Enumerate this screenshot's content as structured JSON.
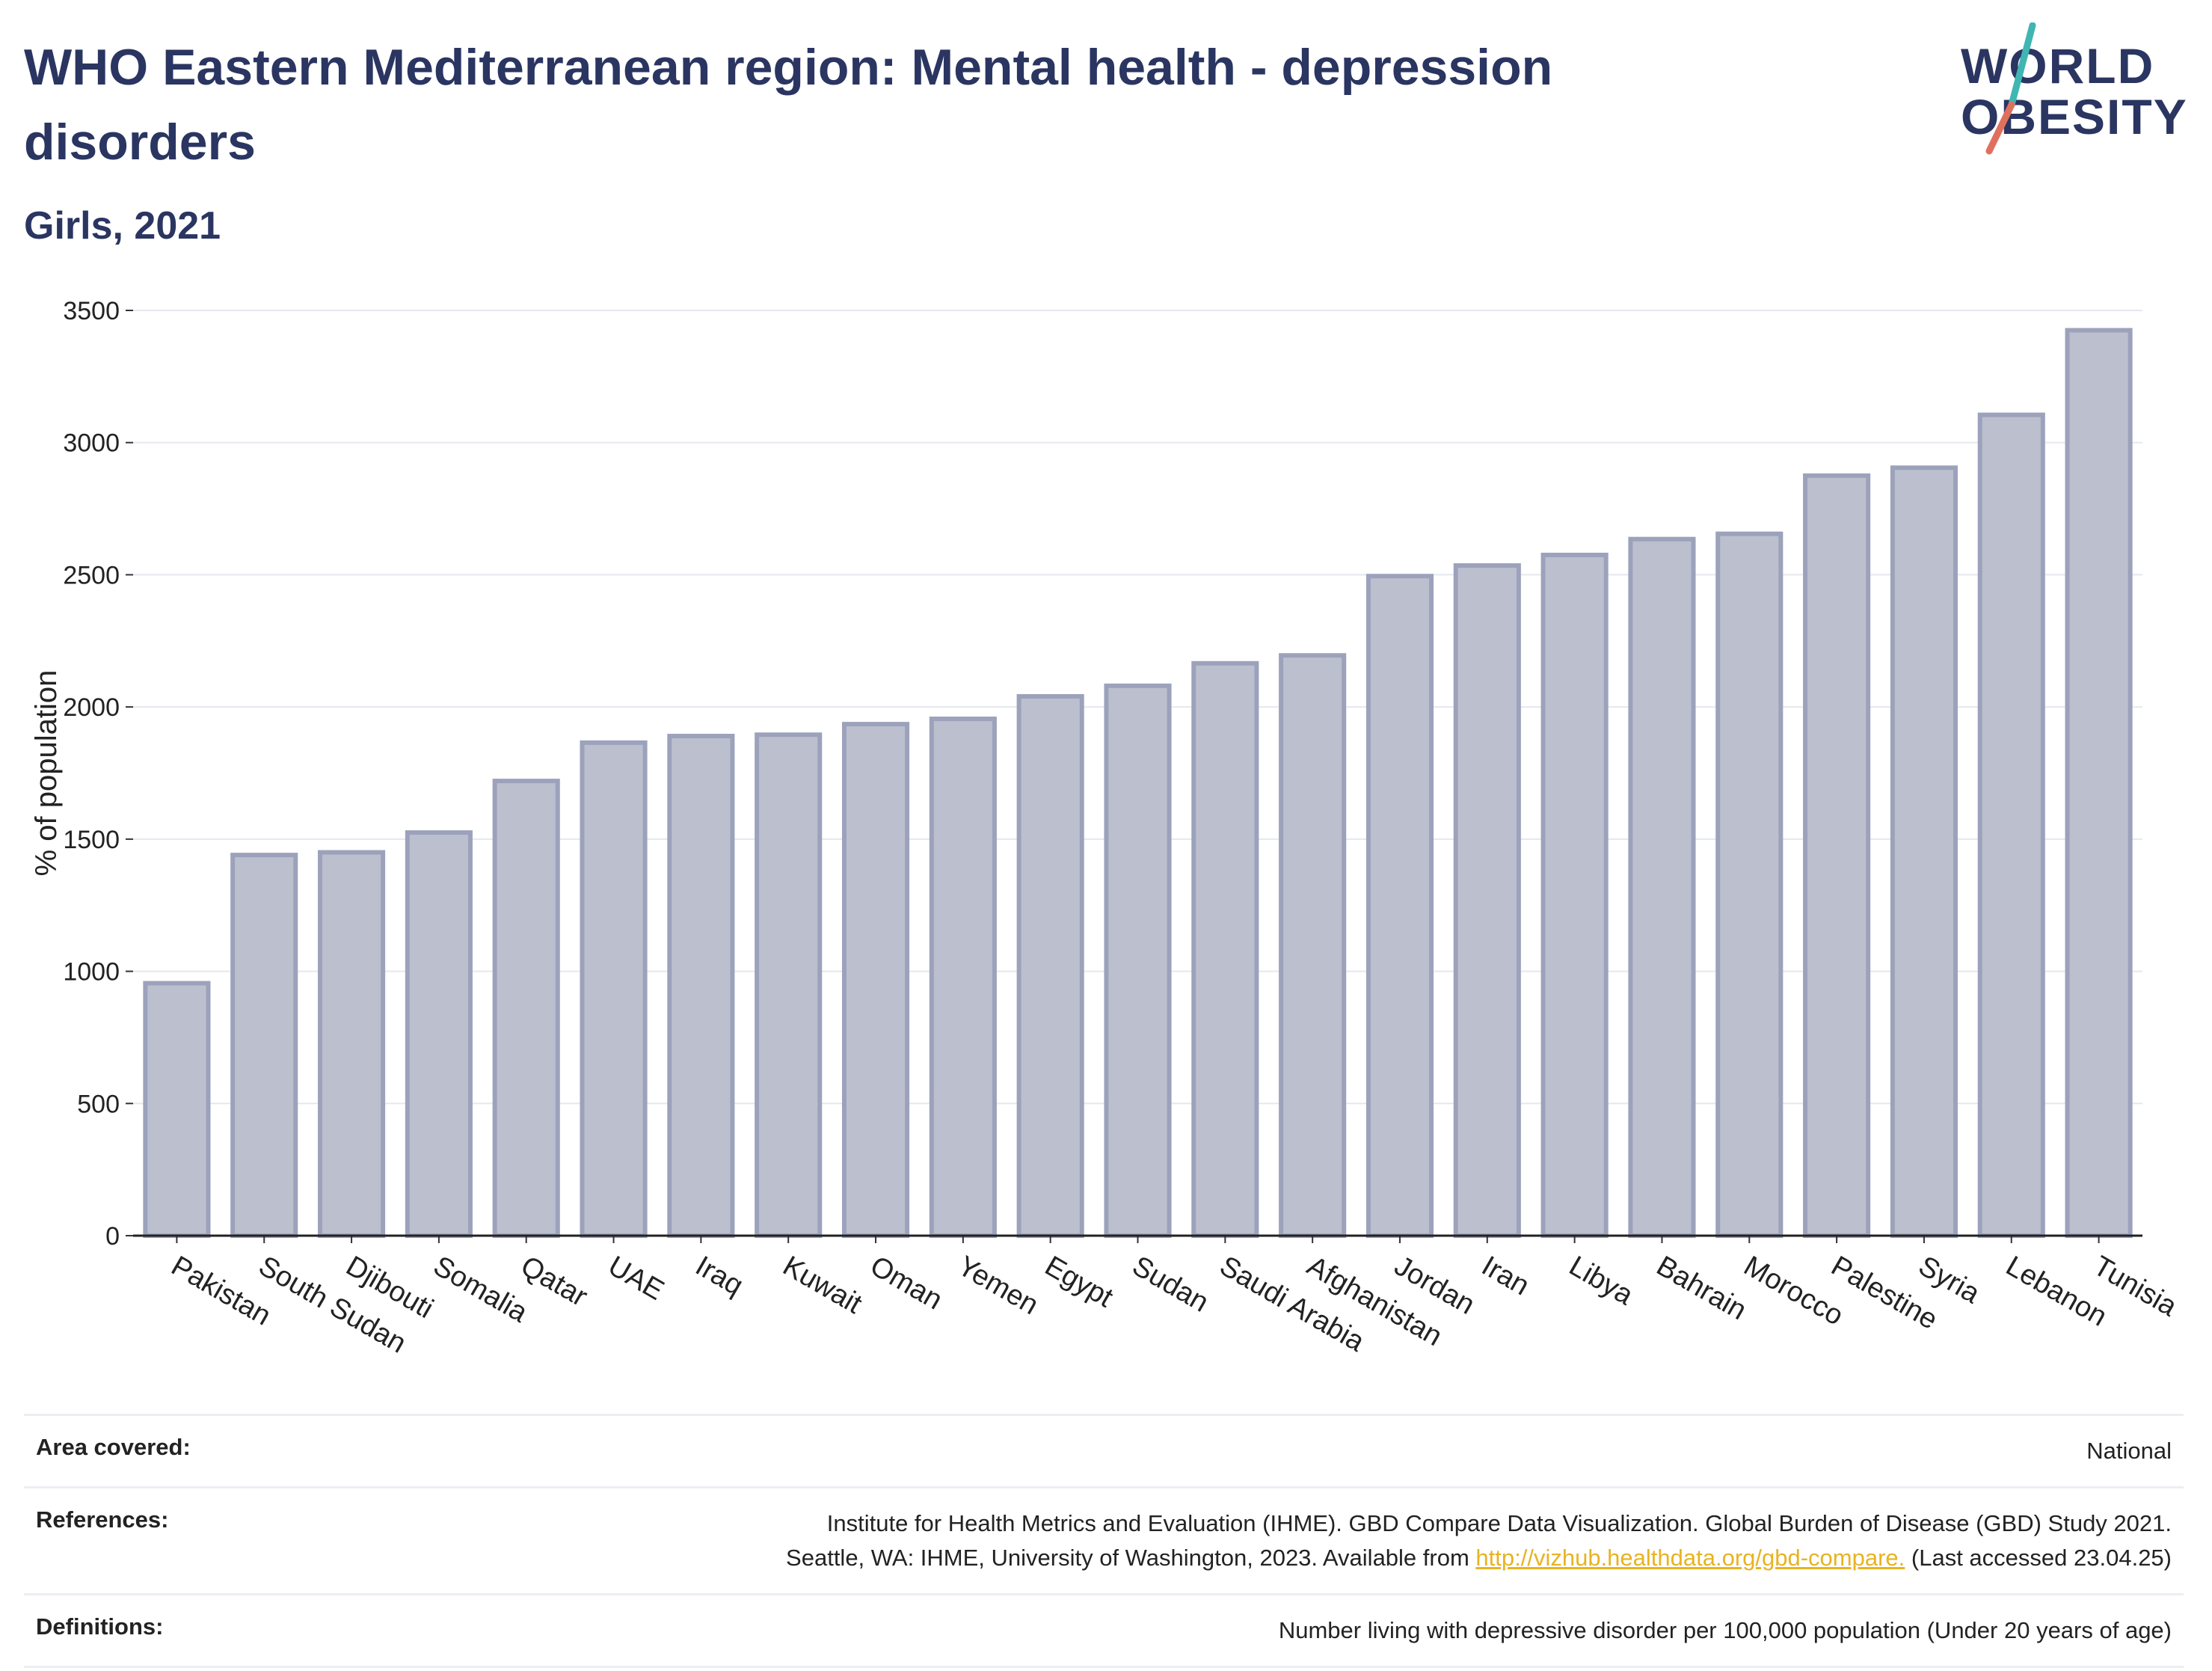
{
  "header": {
    "title": "WHO Eastern Mediterranean region: Mental health - depression disorders",
    "subtitle": "Girls, 2021"
  },
  "logo": {
    "line1": "WORLD",
    "line2": "OBESITY",
    "slash_colors": [
      "#3fb6b2",
      "#e0705e"
    ]
  },
  "chart_data": {
    "type": "bar",
    "ylabel": "% of population",
    "ylim": [
      0,
      3500
    ],
    "yticks": [
      0,
      500,
      1000,
      1500,
      2000,
      2500,
      3000,
      3500
    ],
    "grid": true,
    "bar_color": "#bcc0ce",
    "bar_edge_color": "#9ca2bb",
    "categories": [
      "Pakistan",
      "South Sudan",
      "Djibouti",
      "Somalia",
      "Qatar",
      "UAE",
      "Iraq",
      "Kuwait",
      "Oman",
      "Yemen",
      "Egypt",
      "Sudan",
      "Saudi Arabia",
      "Afghanistan",
      "Jordan",
      "Iran",
      "Libya",
      "Bahrain",
      "Morocco",
      "Palestine",
      "Syria",
      "Lebanon",
      "Tunisia"
    ],
    "values": [
      955,
      1440,
      1450,
      1525,
      1720,
      1865,
      1890,
      1895,
      1935,
      1955,
      2040,
      2080,
      2165,
      2195,
      2495,
      2535,
      2575,
      2635,
      2655,
      2875,
      2905,
      3105,
      3425
    ]
  },
  "footer": {
    "rows": [
      {
        "key": "Area covered:",
        "value": "National"
      },
      {
        "key": "References:",
        "line1": "Institute for Health Metrics and Evaluation (IHME). GBD Compare Data Visualization. Global Burden of Disease (GBD) Study 2021.",
        "line2_pre": "Seattle, WA: IHME, University of Washington, 2023. Available from ",
        "link": "http://vizhub.healthdata.org/gbd-compare.",
        "line2_post": " (Last accessed 23.04.25)"
      },
      {
        "key": "Definitions:",
        "value": "Number living with depressive disorder per 100,000 population (Under 20 years of age)"
      }
    ]
  }
}
